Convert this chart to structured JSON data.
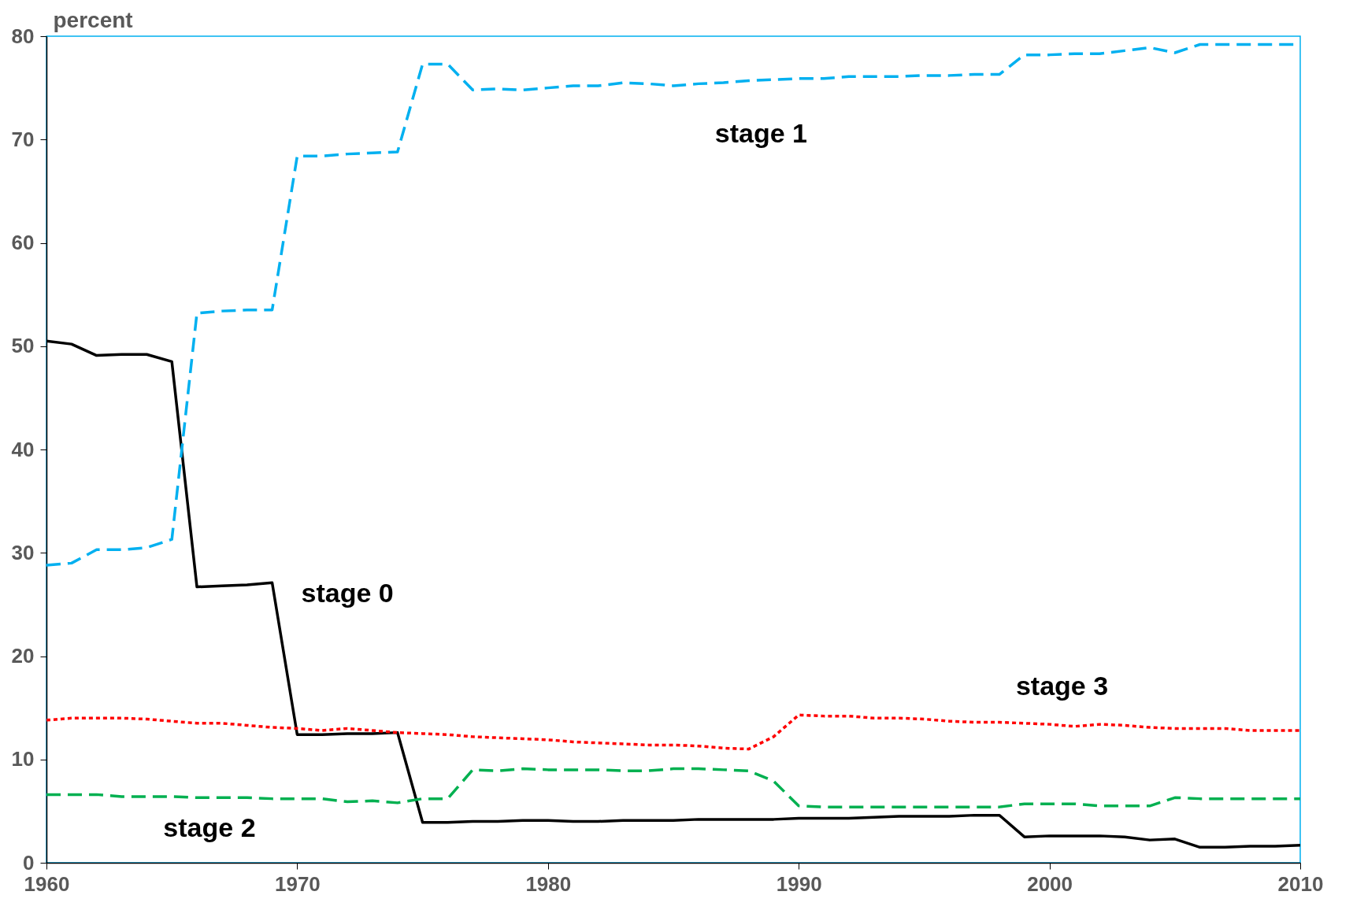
{
  "chart_data": {
    "type": "line",
    "ylabel": "percent",
    "x": [
      1960,
      1961,
      1962,
      1963,
      1964,
      1965,
      1966,
      1967,
      1968,
      1969,
      1970,
      1971,
      1972,
      1973,
      1974,
      1975,
      1976,
      1977,
      1978,
      1979,
      1980,
      1981,
      1982,
      1983,
      1984,
      1985,
      1986,
      1987,
      1988,
      1989,
      1990,
      1991,
      1992,
      1993,
      1994,
      1995,
      1996,
      1997,
      1998,
      1999,
      2000,
      2001,
      2002,
      2003,
      2004,
      2005,
      2006,
      2007,
      2008,
      2009,
      2010
    ],
    "series": [
      {
        "name": "stage 0",
        "color": "#000000",
        "line_style": "solid",
        "values": [
          50.5,
          50.2,
          49.1,
          49.2,
          49.2,
          48.5,
          26.7,
          26.8,
          26.9,
          27.1,
          12.4,
          12.4,
          12.5,
          12.5,
          12.6,
          3.9,
          3.9,
          4.0,
          4.0,
          4.1,
          4.1,
          4.0,
          4.0,
          4.1,
          4.1,
          4.1,
          4.2,
          4.2,
          4.2,
          4.2,
          4.3,
          4.3,
          4.3,
          4.4,
          4.5,
          4.5,
          4.5,
          4.6,
          4.6,
          2.5,
          2.6,
          2.6,
          2.6,
          2.5,
          2.2,
          2.3,
          1.5,
          1.5,
          1.6,
          1.6,
          1.7
        ]
      },
      {
        "name": "stage 1",
        "color": "#00b0f0",
        "line_style": "dashed",
        "values": [
          28.8,
          29.0,
          30.3,
          30.3,
          30.5,
          31.3,
          53.2,
          53.4,
          53.5,
          53.5,
          68.4,
          68.4,
          68.6,
          68.7,
          68.8,
          77.3,
          77.3,
          74.8,
          74.9,
          74.8,
          75.0,
          75.2,
          75.2,
          75.5,
          75.4,
          75.2,
          75.4,
          75.5,
          75.7,
          75.8,
          75.9,
          75.9,
          76.1,
          76.1,
          76.1,
          76.2,
          76.2,
          76.3,
          76.3,
          78.2,
          78.2,
          78.3,
          78.3,
          78.6,
          78.9,
          78.4,
          79.2,
          79.2,
          79.2,
          79.2,
          79.2
        ]
      },
      {
        "name": "stage 2",
        "color": "#00b050",
        "line_style": "dashed",
        "values": [
          6.6,
          6.6,
          6.6,
          6.4,
          6.4,
          6.4,
          6.3,
          6.3,
          6.3,
          6.2,
          6.2,
          6.2,
          5.9,
          6.0,
          5.8,
          6.2,
          6.2,
          9.0,
          8.9,
          9.1,
          9.0,
          9.0,
          9.0,
          8.9,
          8.9,
          9.1,
          9.1,
          9.0,
          8.9,
          7.9,
          5.5,
          5.4,
          5.4,
          5.4,
          5.4,
          5.4,
          5.4,
          5.4,
          5.4,
          5.7,
          5.7,
          5.7,
          5.5,
          5.5,
          5.5,
          6.3,
          6.2,
          6.2,
          6.2,
          6.2,
          6.2
        ]
      },
      {
        "name": "stage 3",
        "color": "#ff0000",
        "line_style": "dotted",
        "values": [
          13.8,
          14.0,
          14.0,
          14.0,
          13.9,
          13.7,
          13.5,
          13.5,
          13.3,
          13.1,
          13.0,
          12.8,
          13.0,
          12.8,
          12.6,
          12.5,
          12.4,
          12.2,
          12.1,
          12.0,
          11.9,
          11.7,
          11.6,
          11.5,
          11.4,
          11.4,
          11.3,
          11.1,
          11.0,
          12.2,
          14.3,
          14.2,
          14.2,
          14.0,
          14.0,
          13.9,
          13.7,
          13.6,
          13.6,
          13.5,
          13.4,
          13.2,
          13.4,
          13.3,
          13.1,
          13.0,
          13.0,
          13.0,
          12.8,
          12.8,
          12.8
        ]
      }
    ],
    "xlim": [
      1960,
      2010
    ],
    "xticks": [
      1960,
      1970,
      1980,
      1990,
      2000,
      2010
    ],
    "ylim": [
      0,
      80
    ],
    "yticks": [
      0,
      10,
      20,
      30,
      40,
      50,
      60,
      70,
      80
    ],
    "grid": false,
    "legend": false,
    "marker": "none"
  }
}
